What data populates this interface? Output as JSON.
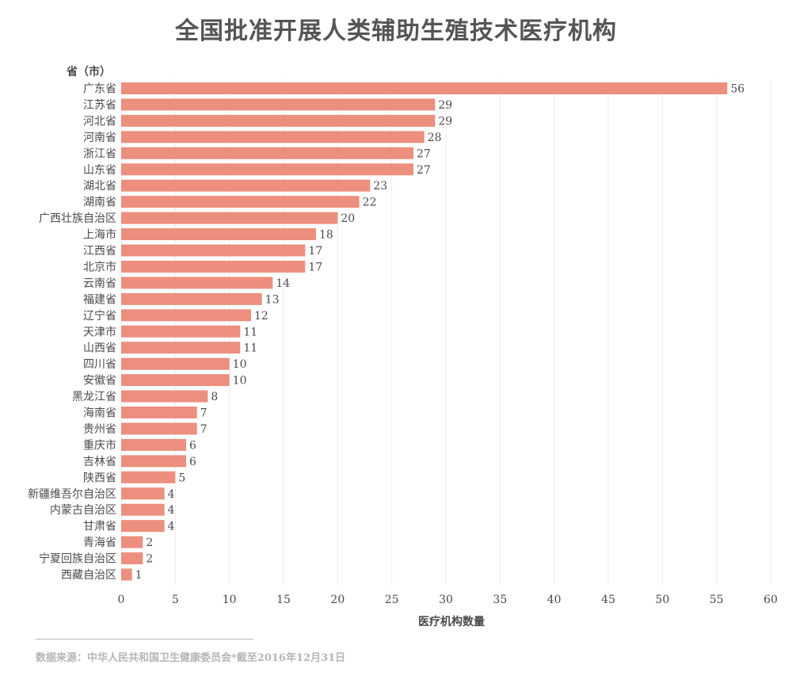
{
  "chart_data": {
    "type": "bar",
    "orientation": "horizontal",
    "title": "全国批准开展人类辅助生殖技术医疗机构",
    "ylabel": "省（市）",
    "xlabel": "医疗机构数量",
    "xlim": [
      0,
      60
    ],
    "xticks": [
      0,
      5,
      10,
      15,
      20,
      25,
      30,
      35,
      40,
      45,
      50,
      55,
      60
    ],
    "grid": "vertical",
    "bar_color": "#ec8f7e",
    "categories": [
      "广东省",
      "江苏省",
      "河北省",
      "河南省",
      "浙江省",
      "山东省",
      "湖北省",
      "湖南省",
      "广西壮族自治区",
      "上海市",
      "江西省",
      "北京市",
      "云南省",
      "福建省",
      "辽宁省",
      "天津市",
      "山西省",
      "四川省",
      "安徽省",
      "黑龙江省",
      "海南省",
      "贵州省",
      "重庆市",
      "吉林省",
      "陕西省",
      "新疆维吾尔自治区",
      "内蒙古自治区",
      "甘肃省",
      "青海省",
      "宁夏回族自治区",
      "西藏自治区"
    ],
    "values": [
      56,
      29,
      29,
      28,
      27,
      27,
      23,
      22,
      20,
      18,
      17,
      17,
      14,
      13,
      12,
      11,
      11,
      10,
      10,
      8,
      7,
      7,
      6,
      6,
      5,
      4,
      4,
      4,
      2,
      2,
      1
    ]
  },
  "source": "数据来源：中华人民共和国卫生健康委员会*截至2016年12月31日"
}
